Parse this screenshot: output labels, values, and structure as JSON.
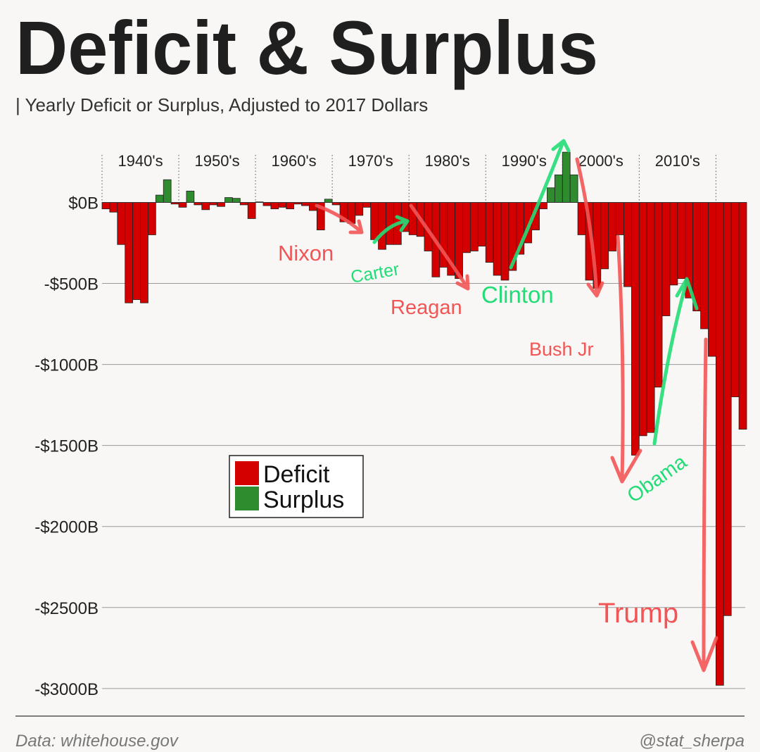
{
  "chart_data": {
    "type": "bar",
    "title": "Deficit & Surplus",
    "subtitle": "| Yearly Deficit or Surplus, Adjusted to 2017 Dollars",
    "decade_labels": [
      "1940's",
      "1950's",
      "1960's",
      "1970's",
      "1980's",
      "1990's",
      "2000's",
      "2010's"
    ],
    "series": [
      {
        "name": "Deficit",
        "color": "#d40000",
        "values": [
          -40,
          -60,
          -260,
          -620,
          -600,
          -620,
          -200,
          null,
          null,
          -10,
          -30,
          null,
          -15,
          -45,
          -15,
          -25,
          null,
          null,
          -15,
          -100,
          null,
          -20,
          -40,
          -30,
          -40,
          -10,
          -20,
          -50,
          -170,
          null,
          -15,
          -120,
          -130,
          -80,
          -30,
          -230,
          -290,
          -260,
          -260,
          -180,
          -200,
          -210,
          -300,
          -460,
          -400,
          -450,
          -470,
          -310,
          -300,
          -270,
          -370,
          -450,
          -480,
          -420,
          -320,
          -250,
          -170,
          -40,
          null,
          null,
          null,
          null,
          -200,
          -480,
          -530,
          -410,
          -300,
          -200,
          -520,
          -1560,
          -1440,
          -1420,
          -1140,
          -700,
          -510,
          -470,
          -590,
          -670,
          -780,
          -950,
          -2980,
          -2550,
          -1200,
          -1400
        ]
      },
      {
        "name": "Surplus",
        "color": "#2e8b2e",
        "values": [
          null,
          null,
          null,
          null,
          null,
          null,
          null,
          45,
          140,
          null,
          null,
          70,
          null,
          null,
          null,
          null,
          30,
          25,
          null,
          null,
          3,
          null,
          null,
          null,
          null,
          null,
          null,
          null,
          null,
          20,
          null,
          null,
          null,
          null,
          null,
          null,
          null,
          null,
          null,
          null,
          null,
          null,
          null,
          null,
          null,
          null,
          null,
          null,
          null,
          null,
          null,
          null,
          null,
          null,
          null,
          null,
          null,
          null,
          90,
          170,
          310,
          170,
          null,
          null,
          null,
          null,
          null,
          null,
          null,
          null,
          null,
          null,
          null,
          null,
          null,
          null,
          null,
          null,
          null,
          null,
          null,
          null,
          null,
          null
        ]
      }
    ],
    "ylim": [
      -3170,
      380
    ],
    "yticks": [
      {
        "value": 0,
        "label": "$0B"
      },
      {
        "value": -500,
        "label": "-$500B"
      },
      {
        "value": -1000,
        "label": "-$1000B"
      },
      {
        "value": -1500,
        "label": "-$1500B"
      },
      {
        "value": -2000,
        "label": "-$2000B"
      },
      {
        "value": -2500,
        "label": "-$2500B"
      },
      {
        "value": -3000,
        "label": "-$3000B"
      }
    ],
    "grid": true,
    "annotations": [
      {
        "text": "Nixon",
        "color": "#f25555"
      },
      {
        "text": "Carter",
        "color": "#22dd77"
      },
      {
        "text": "Reagan",
        "color": "#f25555"
      },
      {
        "text": "Clinton",
        "color": "#22dd77"
      },
      {
        "text": "Bush Jr",
        "color": "#f25555"
      },
      {
        "text": "Obama",
        "color": "#22dd77"
      },
      {
        "text": "Trump",
        "color": "#f25555"
      }
    ],
    "source": "Data: whitehouse.gov",
    "credit": "@stat_sherpa"
  }
}
